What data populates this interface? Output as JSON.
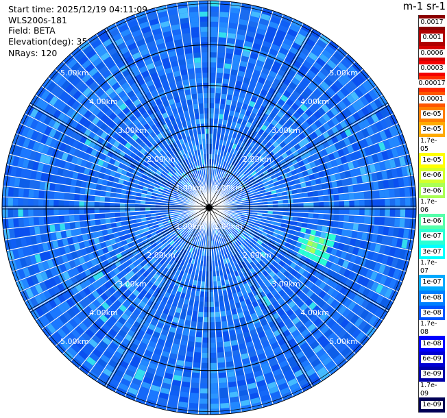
{
  "header": {
    "start_time": "Start time: 2025/12/19 04:11:09",
    "instrument": "WLS200s-181",
    "field": "Field: BETA",
    "elevation": "Elevation(deg): 35.00",
    "nrays": "NRays: 120"
  },
  "colorbar": {
    "title": "m-1 sr-1",
    "labels": [
      "0.0017",
      "0.001",
      "0.0006",
      "0.0003",
      "0.00017",
      "0.0001",
      "6e-05",
      "3e-05",
      "1.7e-05",
      "1e-05",
      "6e-06",
      "3e-06",
      "1.7e-06",
      "1e-06",
      "6e-07",
      "3e-07",
      "1.7e-07",
      "1e-07",
      "6e-08",
      "3e-08",
      "1.7e-08",
      "1e-08",
      "6e-09",
      "3e-09",
      "1.7e-09",
      "1e-09"
    ],
    "colors": [
      "#8b0000",
      "#b00000",
      "#d40000",
      "#f40000",
      "#ff2a00",
      "#ff5500",
      "#ff7f00",
      "#ffaa00",
      "#ffd400",
      "#ffff00",
      "#d4ff2a",
      "#aaff55",
      "#7fff7f",
      "#55ffaa",
      "#2affd4",
      "#00ffff",
      "#00d4ff",
      "#00aaff",
      "#007fff",
      "#0055ff",
      "#002aff",
      "#0000ff",
      "#0000d4",
      "#0000aa",
      "#00007f",
      "#000055"
    ]
  },
  "chart_data": {
    "type": "heatmap",
    "projection": "polar PPI",
    "field": "BETA",
    "elevation_deg": 35.0,
    "n_rays": 120,
    "max_range_km": 5.0,
    "range_ring_labels": [
      {
        "label": "1.00km",
        "value": 1.0
      },
      {
        "label": "2.00km",
        "value": 2.0
      },
      {
        "label": "3.00km",
        "value": 3.0
      },
      {
        "label": "4.00km",
        "value": 4.0
      },
      {
        "label": "5.00km",
        "value": 5.0
      }
    ],
    "background_level": "3e-08",
    "features": [
      {
        "description": "weak echo patch",
        "azimuth_deg": 110,
        "range_km": 2.8,
        "level": "1.7e-06"
      }
    ],
    "colors": {
      "low": "#0055ff",
      "mid": "#00aaff",
      "high": "#7fff7f",
      "ring": "#000000",
      "ray_gap": "#ffffff"
    }
  }
}
